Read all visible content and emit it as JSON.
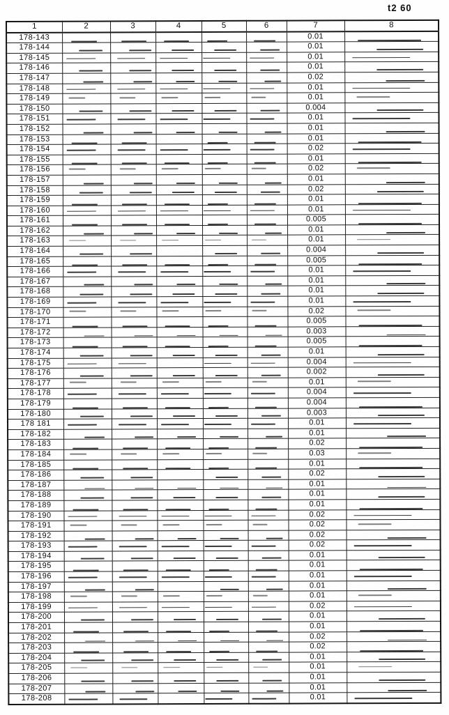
{
  "page": {
    "corner_label": "t2 60"
  },
  "table": {
    "column_headers": [
      "1",
      "2",
      "3",
      "4",
      "5",
      "6",
      "7",
      "8"
    ],
    "rows": [
      {
        "label": "178-143",
        "value": "0.01"
      },
      {
        "label": "178-144",
        "value": "0.01"
      },
      {
        "label": "178-145",
        "value": "0.01"
      },
      {
        "label": "178-146",
        "value": "0.01"
      },
      {
        "label": "178-147",
        "value": "0.02"
      },
      {
        "label": "178-148",
        "value": "0.01"
      },
      {
        "label": "178-149",
        "value": "0.01"
      },
      {
        "label": "178-150",
        "value": "0.004"
      },
      {
        "label": "178-151",
        "value": "0.01"
      },
      {
        "label": "178-152",
        "value": "0.01"
      },
      {
        "label": "178-153",
        "value": "0.01"
      },
      {
        "label": "178-154",
        "value": "0.02"
      },
      {
        "label": "178-155",
        "value": "0.01"
      },
      {
        "label": "178-156",
        "value": "0.02"
      },
      {
        "label": "178-157",
        "value": "0.01"
      },
      {
        "label": "178-158",
        "value": "0.02"
      },
      {
        "label": "178-159",
        "value": "0.01"
      },
      {
        "label": "178-160",
        "value": "0.01"
      },
      {
        "label": "178-161",
        "value": "0.005"
      },
      {
        "label": "178-162",
        "value": "0.01"
      },
      {
        "label": "178-163",
        "value": "0.01"
      },
      {
        "label": "178-164",
        "value": "0.004"
      },
      {
        "label": "178-165",
        "value": "0.005"
      },
      {
        "label": "178-166",
        "value": "0.01"
      },
      {
        "label": "178-167",
        "value": "0.01"
      },
      {
        "label": "178-168",
        "value": "0.01"
      },
      {
        "label": "178-169",
        "value": "0.01"
      },
      {
        "label": "178-170",
        "value": "0.02"
      },
      {
        "label": "178-171",
        "value": "0.005"
      },
      {
        "label": "178-172",
        "value": "0.003"
      },
      {
        "label": "178-173",
        "value": "0.005"
      },
      {
        "label": "178-174",
        "value": "0.01"
      },
      {
        "label": "178-175",
        "value": "0.004"
      },
      {
        "label": "178-176",
        "value": "0.002"
      },
      {
        "label": "178-177",
        "value": "0.01"
      },
      {
        "label": "178-178",
        "value": "0.004"
      },
      {
        "label": "178-179",
        "value": "0.004"
      },
      {
        "label": "178-180",
        "value": "0.003"
      },
      {
        "label": "178 181",
        "value": "0.01"
      },
      {
        "label": "178-182",
        "value": "0.01"
      },
      {
        "label": "178-183",
        "value": "0.02"
      },
      {
        "label": "178-184",
        "value": "0.03"
      },
      {
        "label": "178-185",
        "value": "0.01"
      },
      {
        "label": "178-186",
        "value": "0.02"
      },
      {
        "label": "178-187",
        "value": "0.01"
      },
      {
        "label": "178-188",
        "value": "0.01"
      },
      {
        "label": "178-189",
        "value": "0.01"
      },
      {
        "label": "178-190",
        "value": "0.02"
      },
      {
        "label": "178-191",
        "value": "0.02"
      },
      {
        "label": "178-192",
        "value": "0.02"
      },
      {
        "label": "178-193",
        "value": "0.02"
      },
      {
        "label": "178-194",
        "value": "0.01"
      },
      {
        "label": "178-195",
        "value": "0.01"
      },
      {
        "label": "178-196",
        "value": "0.01"
      },
      {
        "label": "178-197",
        "value": "0.01"
      },
      {
        "label": "178-198",
        "value": "0.01"
      },
      {
        "label": "178-199",
        "value": "0.02"
      },
      {
        "label": "178-200",
        "value": "0.01"
      },
      {
        "label": "178-201",
        "value": "0.01"
      },
      {
        "label": "178-202",
        "value": "0.02"
      },
      {
        "label": "178-203",
        "value": "0.02"
      },
      {
        "label": "178-204",
        "value": "0.01"
      },
      {
        "label": "178-205",
        "value": "0.01"
      },
      {
        "label": "178-206",
        "value": "0.01"
      },
      {
        "label": "178-207",
        "value": "0.01"
      },
      {
        "label": "178-208",
        "value": "0.01"
      }
    ]
  }
}
